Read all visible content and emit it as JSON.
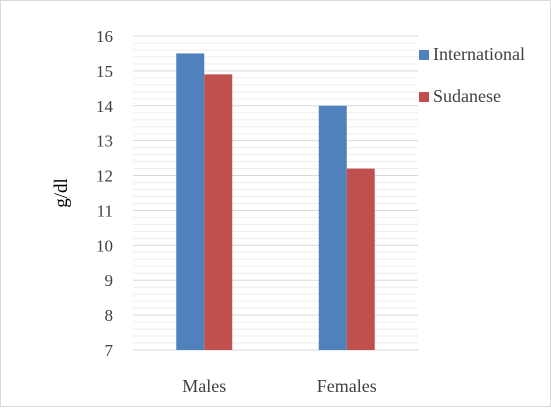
{
  "chart_data": {
    "type": "bar",
    "categories": [
      "Males",
      "Females"
    ],
    "series": [
      {
        "name": "International",
        "values": [
          15.5,
          14.0
        ],
        "color": "#4f81bd"
      },
      {
        "name": "Sudanese",
        "values": [
          14.9,
          12.2
        ],
        "color": "#c0504d"
      }
    ],
    "ylabel": "g/dl",
    "xlabel": "",
    "ylim": [
      7,
      16
    ],
    "yticks": [
      7,
      8,
      9,
      10,
      11,
      12,
      13,
      14,
      15,
      16
    ],
    "minor_gridlines_per_unit": 5,
    "grid": true,
    "legend": "right"
  }
}
